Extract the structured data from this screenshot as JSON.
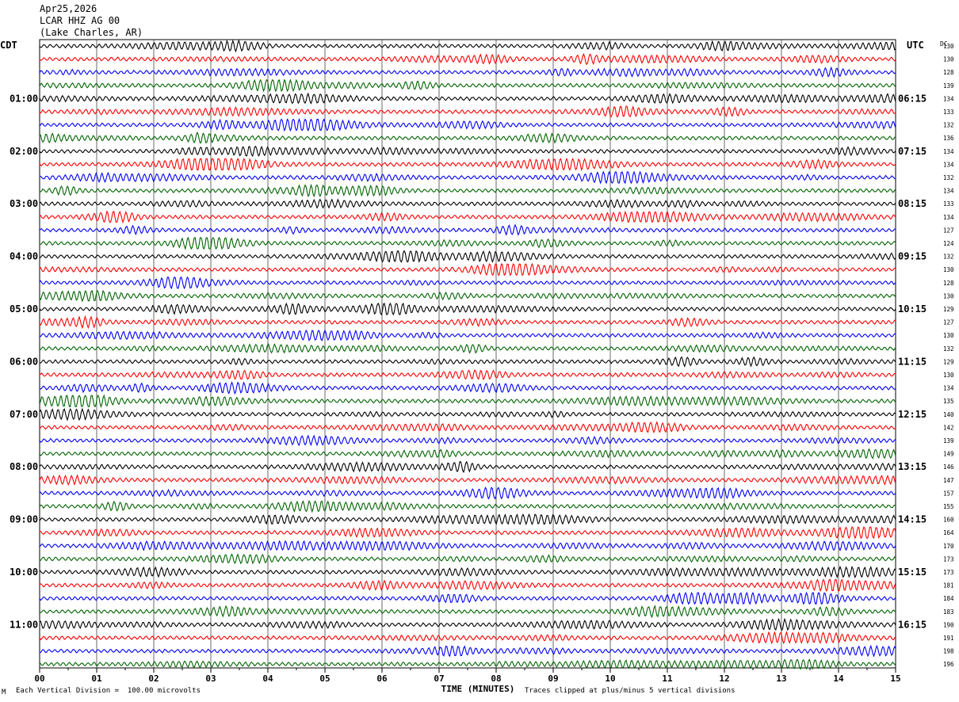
{
  "header": {
    "date": "Apr25,2026",
    "station": "LCAR HHZ AG 00",
    "location": "(Lake Charles, AR)"
  },
  "left_timezone": "CDT",
  "right_timezone": "UTC",
  "dc_label": "DC",
  "footer": {
    "scale_note": "Each Vertical Division =  100.00 microvolts",
    "clip_note": "Traces clipped at plus/minus 5 vertical divisions",
    "corner_mark": "M"
  },
  "chart_data": {
    "type": "line",
    "title": "",
    "xlabel": "TIME (MINUTES)",
    "xlim": [
      0,
      15
    ],
    "x_ticks": [
      "00",
      "01",
      "02",
      "03",
      "04",
      "05",
      "06",
      "07",
      "08",
      "09",
      "10",
      "11",
      "12",
      "13",
      "14",
      "15"
    ],
    "grid": true,
    "trace_colors": [
      "#000000",
      "#ff0000",
      "#0000ff",
      "#006400"
    ],
    "rows_per_hour": 4,
    "left_hour_labels": [
      "01:00",
      "02:00",
      "03:00",
      "04:00",
      "05:00",
      "06:00",
      "07:00",
      "08:00",
      "09:00",
      "10:00",
      "11:00"
    ],
    "right_hour_labels": [
      "06:15",
      "07:15",
      "08:15",
      "09:15",
      "10:15",
      "11:15",
      "12:15",
      "13:15",
      "14:15",
      "15:15",
      "16:15"
    ],
    "dc_offsets": [
      130,
      130,
      128,
      139,
      134,
      133,
      132,
      136,
      134,
      134,
      132,
      134,
      133,
      134,
      127,
      124,
      132,
      130,
      128,
      130,
      129,
      127,
      130,
      132,
      129,
      130,
      134,
      135,
      140,
      142,
      139,
      149,
      146,
      147,
      157,
      155,
      160,
      164,
      170,
      173,
      173,
      181,
      184,
      183,
      190,
      191,
      198,
      196
    ]
  }
}
